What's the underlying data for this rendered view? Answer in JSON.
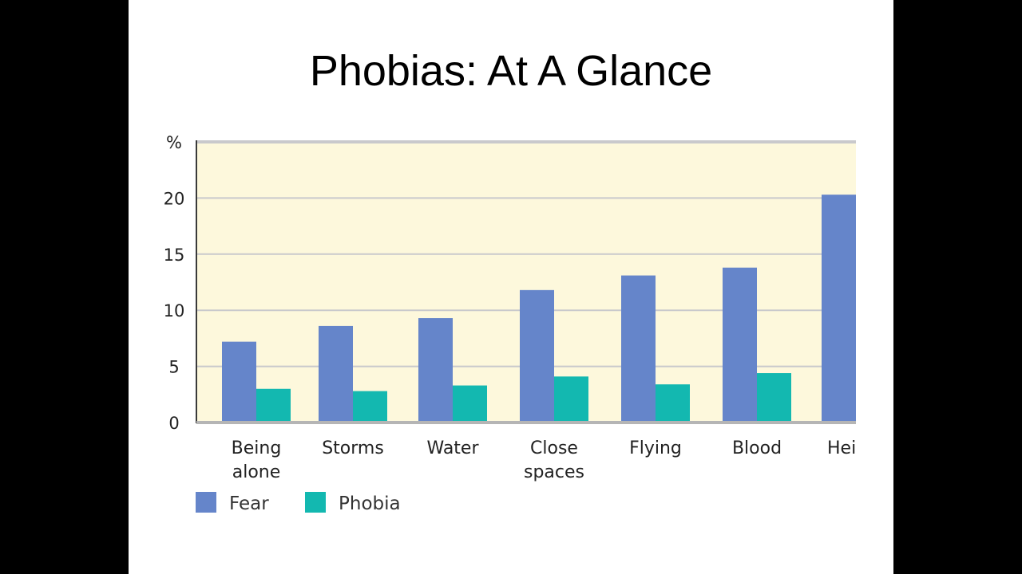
{
  "slide": {
    "title": "Phobias: At A Glance"
  },
  "colors": {
    "plot_bg": "#fdf8dc",
    "grid": "#c9c9cc",
    "axis": "#3a3a3a",
    "fear": "#6585ca",
    "phobia": "#13b8b0"
  },
  "chart_data": {
    "type": "bar",
    "unit_label": "%",
    "categories": [
      [
        "Being",
        "alone"
      ],
      [
        "Storms"
      ],
      [
        "Water"
      ],
      [
        "Close",
        "spaces"
      ],
      [
        "Flying"
      ],
      [
        "Blood"
      ],
      [
        "Hei"
      ]
    ],
    "series": [
      {
        "name": "Fear",
        "values": [
          7.2,
          8.6,
          9.3,
          11.8,
          13.1,
          13.8,
          20.3
        ]
      },
      {
        "name": "Phobia",
        "values": [
          3.0,
          2.8,
          3.3,
          4.1,
          3.4,
          4.4,
          null
        ]
      }
    ],
    "y_ticks": [
      "0",
      "5",
      "10",
      "15",
      "20",
      "%"
    ],
    "y_tick_values": [
      0,
      5,
      10,
      15,
      20,
      25
    ],
    "y_tick_display": [
      "0",
      "5",
      "10",
      "15",
      "20",
      "%"
    ],
    "ylim": [
      0,
      25
    ],
    "grid": true,
    "legend_position": "bottom-left"
  }
}
